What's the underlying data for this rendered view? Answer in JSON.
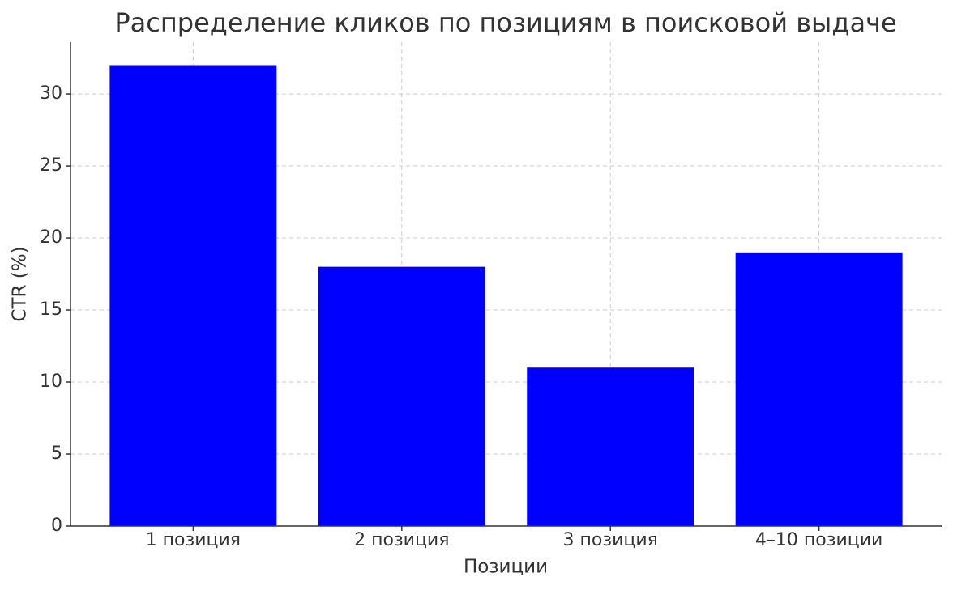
{
  "chart_data": {
    "type": "bar",
    "title": "Распределение кликов по позициям в поисковой выдаче",
    "x_label": "Позиции",
    "y_label": "CTR (%)",
    "categories": [
      "1 позиция",
      "2 позиция",
      "3 позиция",
      "4–10 позиции"
    ],
    "values": [
      32,
      18,
      11,
      19
    ],
    "color": "#0000ff",
    "ylim": [
      0,
      33.6
    ],
    "yticks": [
      0,
      5,
      10,
      15,
      20,
      25,
      30
    ],
    "grid": true
  }
}
